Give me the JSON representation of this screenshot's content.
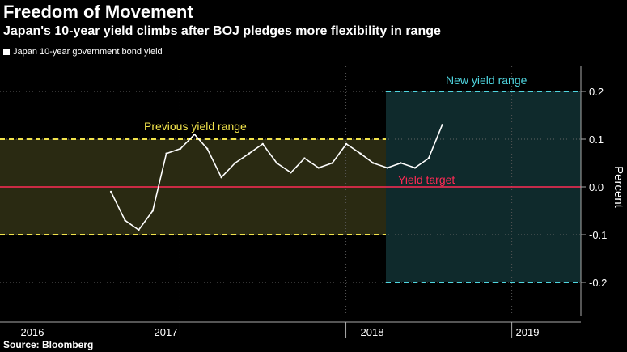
{
  "title": "Freedom of Movement",
  "subtitle": "Japan's 10-year yield climbs after BOJ pledges more flexibility in range",
  "legend": {
    "label": "Japan 10-year government bond yield"
  },
  "source": "Source: Bloomberg",
  "colors": {
    "background": "#000000",
    "line": "#ffffff",
    "prev_range": "#f2e34b",
    "prev_band_fill": "#2a2a12",
    "new_range": "#4fd6e0",
    "new_band_fill": "#0f2a2c",
    "target": "#ff2a55"
  },
  "chart_data": {
    "type": "line",
    "title": "Freedom of Movement",
    "ylabel": "Percent",
    "ylim": [
      -0.26,
      0.26
    ],
    "yticks": [
      0.2,
      0.1,
      0.0,
      -0.1,
      -0.2
    ],
    "ytick_labels": [
      "0.2",
      "0.1",
      "0.0",
      "-0.1",
      "-0.2"
    ],
    "x_labels": [
      "2016",
      "2017",
      "2018",
      "2019"
    ],
    "grid": true,
    "annotations": {
      "prev_range_label": "Previous yield range",
      "new_range_label": "New yield range",
      "target_label": "Yield target"
    },
    "prev_range": [
      -0.1,
      0.1
    ],
    "new_range": [
      -0.2,
      0.2
    ],
    "yield_target": 0.0,
    "series": [
      {
        "name": "Japan 10-year government bond yield",
        "x": [
          "2016-08",
          "2016-09",
          "2016-10",
          "2016-11",
          "2016-12",
          "2017-01",
          "2017-02",
          "2017-03",
          "2017-04",
          "2017-05",
          "2017-06",
          "2017-07",
          "2017-08",
          "2017-09",
          "2017-10",
          "2017-11",
          "2017-12",
          "2018-01",
          "2018-02",
          "2018-03",
          "2018-04",
          "2018-05",
          "2018-06",
          "2018-07",
          "2018-07-31"
        ],
        "values": [
          -0.01,
          -0.07,
          -0.09,
          -0.05,
          0.07,
          0.08,
          0.11,
          0.08,
          0.02,
          0.05,
          0.07,
          0.09,
          0.05,
          0.03,
          0.06,
          0.04,
          0.05,
          0.09,
          0.07,
          0.05,
          0.04,
          0.05,
          0.04,
          0.06,
          0.13
        ]
      }
    ]
  }
}
